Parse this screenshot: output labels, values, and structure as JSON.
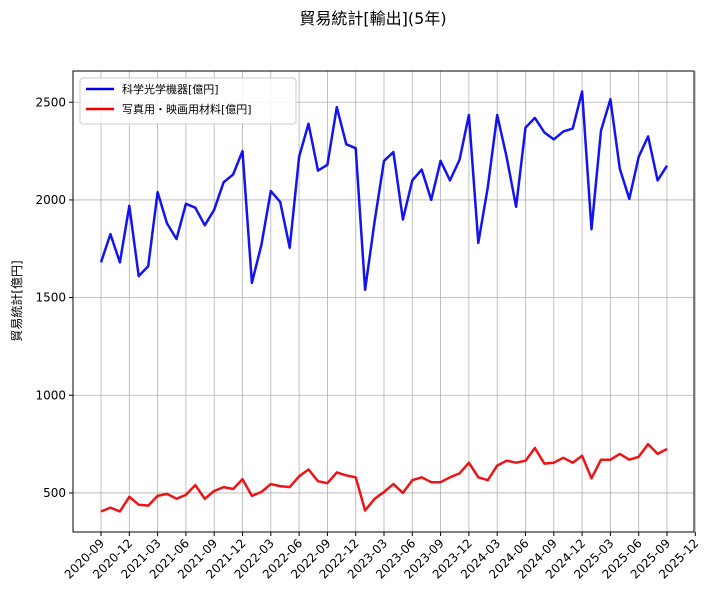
{
  "chart_data": {
    "type": "line",
    "title": "貿易統計[輸出](5年)",
    "xlabel": "",
    "ylabel": "貿易統計[億円]",
    "ylim": [
      300,
      2660
    ],
    "yticks": [
      500,
      1000,
      1500,
      2000,
      2500
    ],
    "grid": true,
    "legend_position": "top-left",
    "x_start": "2020-09",
    "xticks": [
      "2020-09",
      "2020-12",
      "2021-03",
      "2021-06",
      "2021-09",
      "2021-12",
      "2022-03",
      "2022-06",
      "2022-09",
      "2022-12",
      "2023-03",
      "2023-06",
      "2023-09",
      "2023-12",
      "2024-03",
      "2024-06",
      "2024-09",
      "2024-12",
      "2025-03",
      "2025-06",
      "2025-09",
      "2025-12"
    ],
    "series": [
      {
        "name": "科学光学機器[億円]",
        "color": "#0000ee",
        "values": [
          1680,
          1825,
          1680,
          1970,
          1610,
          1660,
          2040,
          1880,
          1800,
          1980,
          1960,
          1870,
          1950,
          2090,
          2130,
          2250,
          1575,
          1770,
          2045,
          1990,
          1755,
          2220,
          2390,
          2150,
          2180,
          2475,
          2285,
          2265,
          1540,
          1890,
          2200,
          2245,
          1900,
          2100,
          2155,
          2000,
          2200,
          2100,
          2205,
          2435,
          1780,
          2065,
          2435,
          2220,
          1965,
          2370,
          2420,
          2345,
          2310,
          2350,
          2365,
          2555,
          1850,
          2355,
          2515,
          2160,
          2005,
          2220,
          2325,
          2100,
          2175
        ]
      },
      {
        "name": "写真用・映画用材料[億円]",
        "color": "#ee0000",
        "values": [
          405,
          425,
          405,
          480,
          440,
          435,
          485,
          495,
          470,
          490,
          540,
          470,
          510,
          530,
          520,
          570,
          485,
          505,
          545,
          535,
          530,
          585,
          620,
          560,
          550,
          605,
          590,
          580,
          410,
          470,
          505,
          545,
          500,
          565,
          580,
          555,
          555,
          580,
          600,
          655,
          580,
          565,
          640,
          665,
          655,
          665,
          730,
          650,
          655,
          680,
          655,
          690,
          575,
          670,
          670,
          700,
          670,
          685,
          750,
          700,
          725
        ]
      }
    ]
  }
}
